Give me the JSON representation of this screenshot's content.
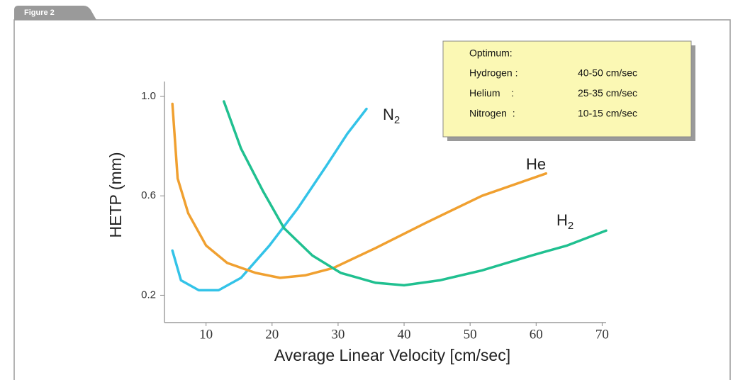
{
  "figure_label": "Figure 2",
  "chart_data": {
    "type": "line",
    "x_label": "Average Linear Velocity [cm/sec]",
    "y_label": "HETP (mm)",
    "xlim": [
      3.7,
      70.6
    ],
    "ylim": [
      0.09,
      1.06
    ],
    "xticks": [
      10,
      20,
      30,
      40,
      50,
      60,
      70
    ],
    "yticks": [
      0.2,
      0.6,
      {
        "value": 1,
        "label": "1.0"
      }
    ],
    "series": [
      {
        "name": "N₂",
        "color": "#33c3e8",
        "x": [
          4.9,
          6.2,
          8.9,
          11.9,
          15.3,
          19.6,
          23.9,
          28.2,
          31.4,
          34.3
        ],
        "values": [
          0.38,
          0.26,
          0.22,
          0.22,
          0.27,
          0.4,
          0.55,
          0.72,
          0.85,
          0.95
        ]
      },
      {
        "name": "He",
        "color": "#f0a030",
        "x": [
          4.9,
          5.7,
          7.3,
          10,
          13.2,
          17.5,
          21.2,
          25,
          29.3,
          35.7,
          43.2,
          51.8,
          61.5
        ],
        "values": [
          0.97,
          0.67,
          0.53,
          0.4,
          0.33,
          0.29,
          0.27,
          0.28,
          0.31,
          0.39,
          0.49,
          0.6,
          0.69
        ]
      },
      {
        "name": "H₂",
        "color": "#20c090",
        "x": [
          12.7,
          15.3,
          18.6,
          21.8,
          26.1,
          30.4,
          35.7,
          40,
          45.4,
          51.8,
          59.3,
          64.7,
          70.6
        ],
        "values": [
          0.98,
          0.79,
          0.62,
          0.47,
          0.36,
          0.29,
          0.25,
          0.24,
          0.26,
          0.3,
          0.36,
          0.4,
          0.46
        ]
      }
    ],
    "annotation": {
      "title": "Optimum:",
      "rows": [
        [
          "Hydrogen :",
          "40-50 cm/sec"
        ],
        [
          "Helium    :",
          "25-35 cm/sec"
        ],
        [
          "Nitrogen  :",
          "10-15 cm/sec"
        ]
      ]
    }
  }
}
